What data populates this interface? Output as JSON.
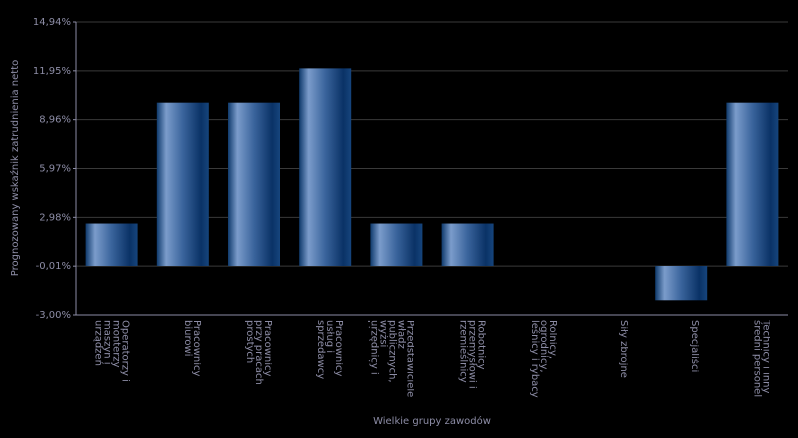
{
  "chart_data": {
    "type": "bar",
    "y_label": "Prognozowany wskaźnik zatrudnienia netto",
    "x_label": "Wielkie grupy zawodów",
    "categories": [
      "Operatorzy i monterzy maszyn i urządzeń",
      "Pracownicy biurowi",
      "Pracownicy przy pracach prostych",
      "Pracownicy usług i sprzedawcy",
      "Przedstawiciele władz publicznych, wyżsi urzędnicy i kierownicy",
      "Robotnicy przemysłowi i rzemieślnicy",
      "Rolnicy, ogrodnicy, leśnicy i rybacy",
      "Siły zbrojne",
      "Specjaliści",
      "Technicy i inny średni personel"
    ],
    "values": [
      2.6,
      10,
      10,
      12.1,
      2.6,
      2.6,
      0,
      0,
      -2.1,
      10
    ],
    "color": "#1c4d85",
    "ylim": [
      -3.0,
      14.94
    ],
    "yticks": [
      {
        "value": -3.0,
        "label": "-3,00%"
      },
      {
        "value": -0.01,
        "label": "-0,01%"
      },
      {
        "value": 2.98,
        "label": "2,98%"
      },
      {
        "value": 5.97,
        "label": "5,97%"
      },
      {
        "value": 8.96,
        "label": "8,96%"
      },
      {
        "value": 11.95,
        "label": "11,95%"
      },
      {
        "value": 14.94,
        "label": "14,94%"
      }
    ],
    "grid": true
  }
}
